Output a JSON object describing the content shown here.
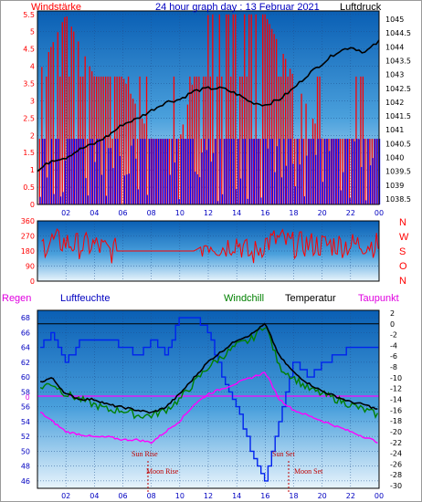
{
  "top_panel": {
    "title_left": "Windstärke",
    "title_center": "24 hour graph day : 13 Februar 2021",
    "title_right": "Luftdruck"
  },
  "direction_panel": {
    "compass_letters": [
      "N",
      "W",
      "S",
      "O",
      "N"
    ]
  },
  "bottom_panel": {
    "labels": {
      "regen": "Regen",
      "luftfeuchte": "Luftfeuchte",
      "windchill": "Windchill",
      "temperatur": "Temperatur",
      "taupunkt": "Taupunkt"
    },
    "annotations": {
      "sun_rise": "Sun Rise",
      "sun_set": "Sun Set",
      "moon_rise": "Moon Rise",
      "moon_set": "Moon Set"
    },
    "zero_label": "0"
  },
  "colors": {
    "wind_red": "#ff0000",
    "wind_blue": "#0000ff",
    "pressure": "#000000",
    "humidity": "#0022ee",
    "windchill": "#008000",
    "temperature": "#000000",
    "dewpoint": "#ff00ff",
    "annot": "#c00000",
    "left_axis_red": "#ff0000",
    "left_axis_blue": "#0000c0"
  },
  "chart_data": [
    {
      "type": "bar",
      "x_ticks": [
        "02",
        "04",
        "06",
        "08",
        "10",
        "12",
        "14",
        "16",
        "18",
        "20",
        "22",
        "00"
      ],
      "y_left_ticks": [
        "0",
        "0.5",
        "1",
        "1.5",
        "2",
        "2.5",
        "3",
        "3.5",
        "4",
        "4.5",
        "5",
        "5.5"
      ],
      "y_left_range": [
        0,
        5.6
      ],
      "y_right_ticks": [
        "1038.5",
        "1039",
        "1039.5",
        "1040",
        "1040.5",
        "1041",
        "1041.5",
        "1042",
        "1042.5",
        "1043",
        "1043.5",
        "1044",
        "1044.5",
        "1045"
      ],
      "y_right_range": [
        1038.3,
        1045.3
      ],
      "series": [
        {
          "name": "Windstärke",
          "hours": [
            0,
            2,
            4,
            6,
            8,
            10,
            12,
            14,
            16,
            18,
            20,
            22,
            24
          ],
          "gust_max": [
            3.7,
            5.5,
            3.7,
            3.7,
            1.9,
            1.9,
            5.5,
            5.5,
            5.5,
            3.7,
            1.9,
            1.9,
            1.9
          ],
          "mean": [
            1.9,
            1.9,
            1.9,
            1.9,
            1.9,
            1.9,
            1.9,
            1.9,
            1.9,
            1.9,
            1.9,
            1.9,
            1.9
          ]
        },
        {
          "name": "Luftdruck",
          "hours": [
            0,
            1,
            2,
            3,
            4,
            5,
            6,
            7,
            8,
            9,
            10,
            11,
            12,
            13,
            14,
            15,
            16,
            17,
            18,
            19,
            20,
            21,
            22,
            23,
            24
          ],
          "values": [
            1039.5,
            1039.9,
            1040.0,
            1040.3,
            1040.5,
            1040.8,
            1041.2,
            1041.4,
            1041.7,
            1042.0,
            1042.1,
            1042.4,
            1042.5,
            1042.5,
            1042.3,
            1042.0,
            1041.9,
            1042.1,
            1042.5,
            1043.0,
            1043.4,
            1043.8,
            1044.0,
            1043.8,
            1044.2
          ]
        }
      ]
    },
    {
      "type": "line",
      "x_ticks": [
        "02",
        "04",
        "06",
        "08",
        "10",
        "12",
        "14",
        "16",
        "18",
        "20",
        "22",
        "00"
      ],
      "y_left_ticks": [
        "0",
        "90",
        "180",
        "270",
        "360"
      ],
      "y_range": [
        0,
        360
      ],
      "series": [
        {
          "name": "Windrichtung",
          "hours": [
            0,
            1,
            2,
            3,
            4,
            5,
            6,
            7,
            8,
            9,
            10,
            11,
            12,
            13,
            14,
            15,
            16,
            17,
            18,
            19,
            20,
            21,
            22,
            23,
            24
          ],
          "values": [
            200,
            240,
            230,
            210,
            215,
            180,
            180,
            180,
            180,
            180,
            180,
            180,
            230,
            200,
            240,
            150,
            230,
            250,
            215,
            220,
            215,
            220,
            215,
            225,
            215
          ]
        }
      ]
    },
    {
      "type": "line",
      "x_ticks": [
        "02",
        "04",
        "06",
        "08",
        "10",
        "12",
        "14",
        "16",
        "18",
        "20",
        "22",
        "00"
      ],
      "x_annotations": [
        "Sun Rise",
        "Sun Set",
        "Moon Rise",
        "Moon Set"
      ],
      "y_left_ticks": [
        "46",
        "48",
        "50",
        "52",
        "54",
        "56",
        "58",
        "60",
        "62",
        "64",
        "66",
        "68"
      ],
      "y_left_range": [
        45,
        69
      ],
      "y_right_ticks": [
        "2",
        "0",
        "-2",
        "-4",
        "-6",
        "-8",
        "-10",
        "-12",
        "-14",
        "-16",
        "-18",
        "-20",
        "-22",
        "-24",
        "-26",
        "-28",
        "-30"
      ],
      "y_right_range": [
        -30.5,
        2.5
      ],
      "series": [
        {
          "name": "Luftfeuchte",
          "axis": "left",
          "hours": [
            0,
            1,
            2,
            3,
            4,
            5,
            6,
            7,
            8,
            9,
            10,
            11,
            12,
            13,
            14,
            15,
            16,
            17,
            18,
            19,
            20,
            21,
            22,
            23,
            24
          ],
          "values": [
            64,
            66,
            62,
            65,
            65,
            65,
            64,
            63,
            65,
            63,
            68,
            68,
            66,
            60,
            56,
            50,
            46,
            54,
            62,
            60,
            62,
            63,
            64,
            64,
            64
          ]
        },
        {
          "name": "Windchill",
          "axis": "right",
          "hours": [
            0,
            1,
            2,
            3,
            4,
            5,
            6,
            7,
            8,
            9,
            10,
            11,
            12,
            13,
            14,
            15,
            16,
            17,
            18,
            19,
            20,
            21,
            22,
            23,
            24
          ],
          "values": [
            -12,
            -11,
            -13,
            -14,
            -15,
            -16,
            -16,
            -17,
            -17,
            -16,
            -14,
            -11,
            -8,
            -6,
            -4,
            -3,
            0,
            -8,
            -10,
            -12,
            -13,
            -14,
            -15,
            -16,
            -17
          ]
        },
        {
          "name": "Temperatur",
          "axis": "right",
          "hours": [
            0,
            1,
            2,
            3,
            4,
            5,
            6,
            7,
            8,
            9,
            10,
            11,
            12,
            13,
            14,
            15,
            16,
            17,
            18,
            19,
            20,
            21,
            22,
            23,
            24
          ],
          "values": [
            -11,
            -10,
            -13,
            -14,
            -14,
            -15,
            -15.5,
            -16,
            -16.5,
            -15.5,
            -13,
            -10,
            -7,
            -5,
            -3,
            -2,
            0,
            -6,
            -9,
            -11,
            -12.5,
            -13.5,
            -14.5,
            -15,
            -16
          ]
        },
        {
          "name": "Taupunkt",
          "axis": "right",
          "hours": [
            0,
            1,
            2,
            3,
            4,
            5,
            6,
            7,
            8,
            9,
            10,
            11,
            12,
            13,
            14,
            15,
            16,
            17,
            18,
            19,
            20,
            21,
            22,
            23,
            24
          ],
          "values": [
            -16,
            -18,
            -20,
            -20.5,
            -21,
            -21,
            -21.5,
            -21.5,
            -22,
            -20,
            -18,
            -15,
            -13,
            -12,
            -11,
            -10,
            -9,
            -14,
            -16,
            -17,
            -18,
            -19,
            -20,
            -21,
            -22
          ]
        }
      ]
    }
  ]
}
